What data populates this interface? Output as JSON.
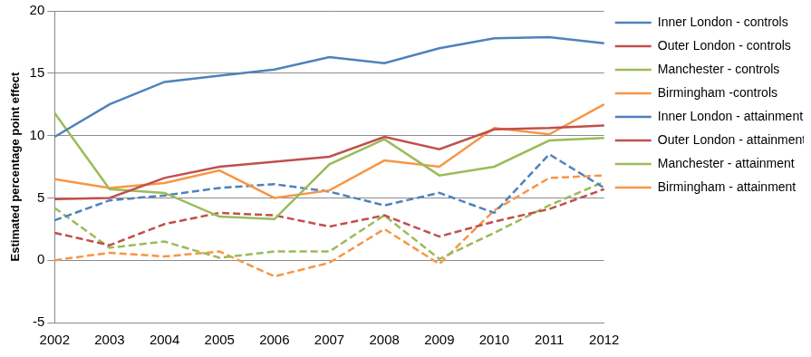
{
  "chart_data": {
    "type": "line",
    "y_label": "Estimated percentage point effect",
    "categories": [
      "2002",
      "2003",
      "2004",
      "2005",
      "2006",
      "2007",
      "2008",
      "2009",
      "2010",
      "2011",
      "2012"
    ],
    "series": [
      {
        "name": "Inner London - controls",
        "color": "#4F81BD",
        "line_style": "solid",
        "values": [
          9.9,
          12.5,
          14.3,
          14.8,
          15.3,
          16.3,
          15.8,
          17.0,
          17.8,
          17.9,
          17.4
        ]
      },
      {
        "name": "Outer London - controls",
        "color": "#C0504D",
        "line_style": "solid",
        "values": [
          4.9,
          5.0,
          6.6,
          7.5,
          7.9,
          8.3,
          9.9,
          8.9,
          10.5,
          10.6,
          10.8
        ]
      },
      {
        "name": "Manchester - controls",
        "color": "#9BBB59",
        "line_style": "solid",
        "values": [
          11.8,
          5.7,
          5.4,
          3.5,
          3.3,
          7.7,
          9.7,
          6.8,
          7.5,
          9.6,
          9.8
        ]
      },
      {
        "name": "Birmingham -controls",
        "color": "#F79646",
        "line_style": "solid",
        "values": [
          6.5,
          5.8,
          6.2,
          7.2,
          5.0,
          5.6,
          8.0,
          7.5,
          10.6,
          10.1,
          12.5
        ]
      },
      {
        "name": "Inner London - attainment",
        "color": "#4F81BD",
        "line_style": "dashed",
        "values": [
          3.2,
          4.8,
          5.2,
          5.8,
          6.1,
          5.5,
          4.4,
          5.4,
          3.8,
          8.5,
          5.8
        ]
      },
      {
        "name": "Outer London - attainment",
        "color": "#C0504D",
        "line_style": "dashed",
        "values": [
          2.2,
          1.2,
          2.9,
          3.8,
          3.6,
          2.7,
          3.6,
          1.9,
          3.1,
          4.1,
          5.7
        ]
      },
      {
        "name": "Manchester - attainment",
        "color": "#9BBB59",
        "line_style": "dashed",
        "values": [
          4.2,
          1.0,
          1.5,
          0.2,
          0.7,
          0.7,
          3.6,
          0.1,
          2.2,
          4.4,
          6.3
        ]
      },
      {
        "name": "Birmingham - attainment",
        "color": "#F79646",
        "line_style": "dashed",
        "values": [
          0.0,
          0.6,
          0.3,
          0.7,
          -1.3,
          -0.2,
          2.5,
          -0.3,
          4.0,
          6.6,
          6.8
        ]
      }
    ],
    "ylim": [
      -5,
      20
    ],
    "yticks": [
      -5,
      0,
      5,
      10,
      15,
      20
    ],
    "grid": true,
    "legend": "right",
    "marker": "none"
  }
}
